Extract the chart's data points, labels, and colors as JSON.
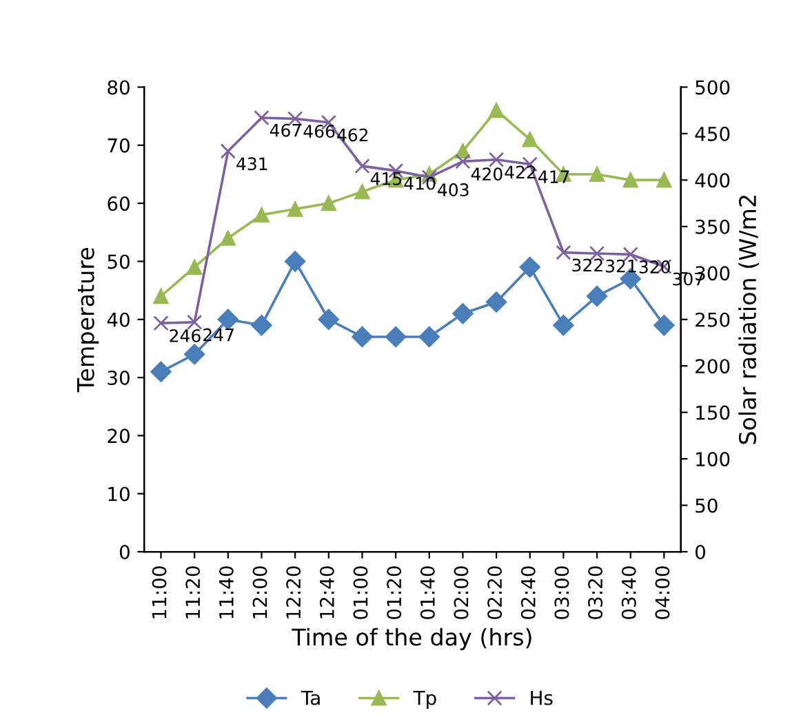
{
  "chart_data": {
    "type": "line",
    "xlabel": "Time of the day (hrs)",
    "ylabel": "Temperature",
    "y2label": "Solar radiation (W/m2",
    "categories": [
      "11:00",
      "11:20",
      "11:40",
      "12:00",
      "12:20",
      "12:40",
      "01:00",
      "01:20",
      "01:40",
      "02:00",
      "02:20",
      "02:40",
      "03:00",
      "03:20",
      "03:40",
      "04:00"
    ],
    "series": [
      {
        "name": "Ta",
        "color": "#4a7ebb",
        "marker": "diamond",
        "values": [
          31,
          34,
          40,
          39,
          50,
          40,
          37,
          37,
          37,
          41,
          43,
          49,
          39,
          44,
          47,
          39
        ]
      },
      {
        "name": "Tp",
        "color": "#98b954",
        "marker": "triangle",
        "values": [
          44,
          49,
          54,
          58,
          59,
          60,
          62,
          64,
          65,
          69,
          76,
          71,
          65,
          65,
          64,
          64
        ]
      },
      {
        "name": "Hs",
        "color": "#7d60a0",
        "marker": "cross",
        "axis": "y2",
        "values": [
          246,
          247,
          431,
          467,
          466,
          462,
          415,
          410,
          403,
          420,
          422,
          417,
          322,
          321,
          320,
          307
        ],
        "value_labels": [
          "246",
          "247",
          "431",
          "467",
          "466",
          "462",
          "415",
          "410",
          "403",
          "420",
          "422",
          "417",
          "322",
          "321",
          "320",
          "307"
        ]
      }
    ],
    "ylim": [
      0,
      80
    ],
    "yticks": [
      0,
      10,
      20,
      30,
      40,
      50,
      60,
      70,
      80
    ],
    "y2lim": [
      0,
      500
    ],
    "y2ticks": [
      0,
      50,
      100,
      150,
      200,
      250,
      300,
      350,
      400,
      450,
      500
    ],
    "grid": false,
    "legend": "bottom"
  }
}
